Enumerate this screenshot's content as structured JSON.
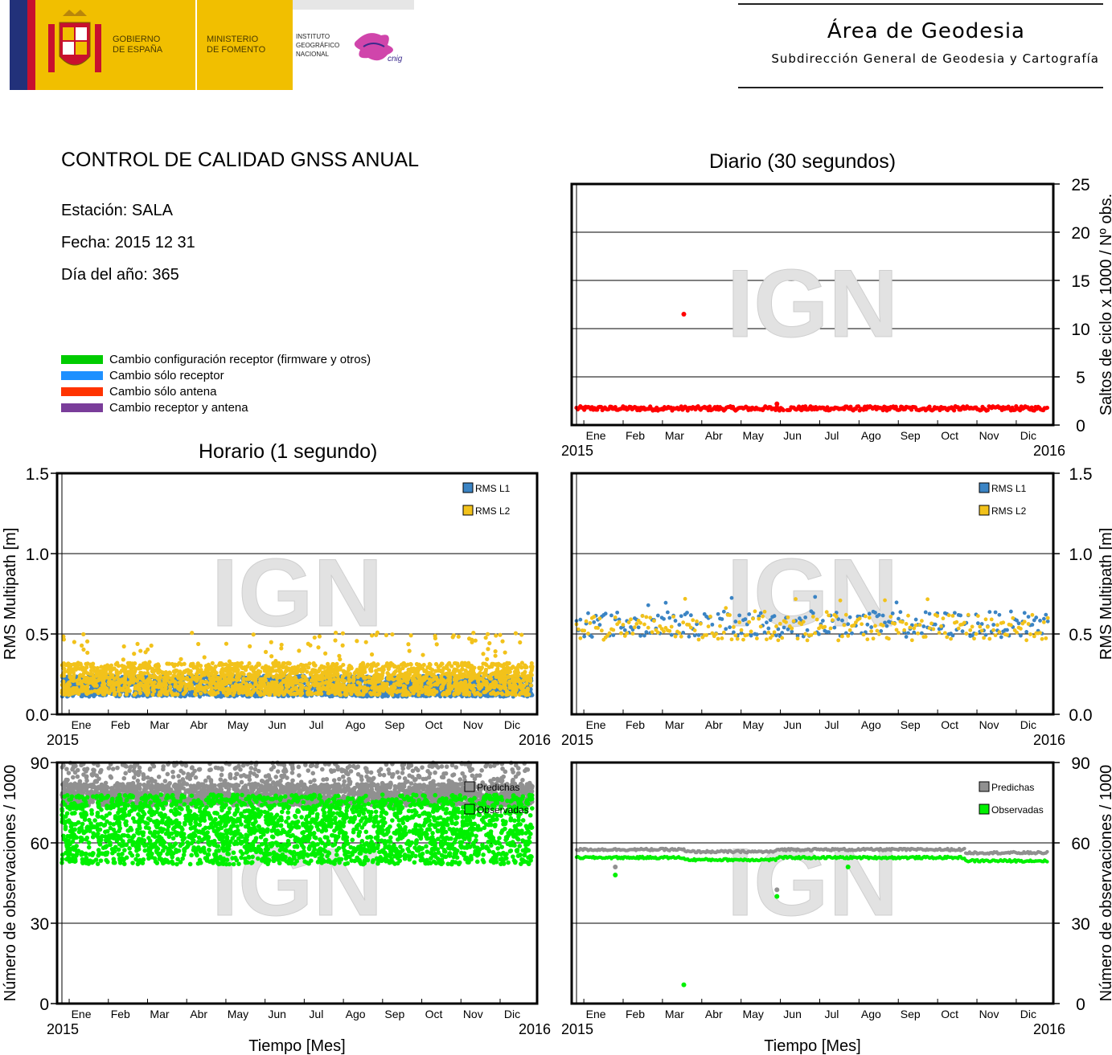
{
  "header": {
    "gobierno": [
      "GOBIERNO",
      "DE ESPAÑA"
    ],
    "ministerio": [
      "MINISTERIO",
      "DE FOMENTO"
    ],
    "instituto": [
      "INSTITUTO",
      "GEOGRÁFICO",
      "NACIONAL"
    ],
    "cnig": "cnig",
    "title": "Área de Geodesia",
    "subtitle": "Subdirección General de Geodesia y Cartografía",
    "colors": {
      "spain_red": "#c8102e",
      "spain_yellow": "#f1bf00",
      "eu_blue": "#22317a",
      "ign_magenta": "#c8249c"
    }
  },
  "info": {
    "title": "CONTROL DE CALIDAD GNSS ANUAL",
    "station": "Estación: SALA",
    "date": "Fecha: 2015 12 31",
    "doy": "Día del año: 365"
  },
  "legend": [
    {
      "label": "Cambio configuración receptor (firmware y otros)",
      "color": "#00cc00"
    },
    {
      "label": "Cambio sólo receptor",
      "color": "#1e90ff"
    },
    {
      "label": "Cambio sólo antena",
      "color": "#ff3300"
    },
    {
      "label": "Cambio receptor y antena",
      "color": "#7a3d9a"
    }
  ],
  "panel_titles": {
    "daily": "Diario (30 segundos)",
    "hourly": "Horario (1 segundo)"
  },
  "watermark": "IGN",
  "chart_data": [
    {
      "id": "cycle-slips-daily",
      "type": "scatter",
      "x_year_start": "2015",
      "x_year_end": "2016",
      "x_month_labels": [
        "Ene",
        "Feb",
        "Mar",
        "Abr",
        "May",
        "Jun",
        "Jul",
        "Ago",
        "Sep",
        "Oct",
        "Nov",
        "Dic"
      ],
      "ylabel": "Saltos de ciclo x 1000 / Nº obs.",
      "ylim": [
        0,
        25
      ],
      "yticks": [
        "0",
        "5",
        "10",
        "15",
        "20",
        "25"
      ],
      "y_axis_side": "right",
      "grid": true,
      "series": [
        {
          "color": "#ff0000",
          "points": [
            [
              83,
              11.5
            ],
            [
              155,
              2.2
            ],
            [
              160,
              1.8
            ],
            [
              0,
              1.6
            ],
            [
              30,
              1.4
            ],
            [
              60,
              1.6
            ],
            [
              90,
              1.5
            ],
            [
              120,
              1.5
            ],
            [
              150,
              1.5
            ],
            [
              180,
              1.6
            ],
            [
              210,
              1.8
            ],
            [
              240,
              1.7
            ],
            [
              270,
              1.7
            ],
            [
              300,
              1.5
            ],
            [
              330,
              1.6
            ],
            [
              364,
              1.6
            ]
          ]
        }
      ]
    },
    {
      "id": "multipath-hourly",
      "type": "scatter",
      "x_year_start": "2015",
      "x_year_end": "2016",
      "x_month_labels": [
        "Ene",
        "Feb",
        "Mar",
        "Abr",
        "May",
        "Jun",
        "Jul",
        "Ago",
        "Sep",
        "Oct",
        "Nov",
        "Dic"
      ],
      "ylabel": "RMS Multipath [m]",
      "ylim": [
        0,
        1.5
      ],
      "yticks": [
        "0.0",
        "0.5",
        "1.0",
        "1.5"
      ],
      "y_axis_side": "left",
      "grid": true,
      "series": [
        {
          "name": "RMS L1",
          "color": "#3b84c4",
          "band": [
            0.11,
            0.24
          ]
        },
        {
          "name": "RMS L2",
          "color": "#f2c21b",
          "band": [
            0.12,
            0.32
          ],
          "max": 0.51
        }
      ]
    },
    {
      "id": "multipath-daily",
      "type": "scatter",
      "x_year_start": "2015",
      "x_year_end": "2016",
      "x_month_labels": [
        "Ene",
        "Feb",
        "Mar",
        "Abr",
        "May",
        "Jun",
        "Jul",
        "Ago",
        "Sep",
        "Oct",
        "Nov",
        "Dic"
      ],
      "ylabel": "RMS Multipath [m]",
      "ylim": [
        0,
        1.5
      ],
      "yticks": [
        "0.0",
        "0.5",
        "1.0",
        "1.5"
      ],
      "y_axis_side": "right",
      "grid": true,
      "series": [
        {
          "name": "RMS L1",
          "color": "#3b84c4",
          "band": [
            0.48,
            0.64
          ]
        },
        {
          "name": "RMS L2",
          "color": "#f2c21b",
          "band": [
            0.46,
            0.62
          ]
        }
      ]
    },
    {
      "id": "observations-hourly",
      "type": "scatter",
      "x_year_start": "2015",
      "x_year_end": "2016",
      "x_month_labels": [
        "Ene",
        "Feb",
        "Mar",
        "Abr",
        "May",
        "Jun",
        "Jul",
        "Ago",
        "Sep",
        "Oct",
        "Nov",
        "Dic"
      ],
      "xlabel": "Tiempo [Mes]",
      "ylabel": "Número de observaciones / 1000",
      "ylim": [
        0,
        90
      ],
      "yticks": [
        "0",
        "30",
        "60",
        "90"
      ],
      "y_axis_side": "left",
      "grid": true,
      "series": [
        {
          "name": "Predichas",
          "color": "#909090",
          "band": [
            74,
            82
          ]
        },
        {
          "name": "Observadas",
          "color": "#00f000",
          "band": [
            52,
            78
          ]
        }
      ]
    },
    {
      "id": "observations-daily",
      "type": "scatter",
      "x_year_start": "2015",
      "x_year_end": "2016",
      "x_month_labels": [
        "Ene",
        "Feb",
        "Mar",
        "Abr",
        "May",
        "Jun",
        "Jul",
        "Ago",
        "Sep",
        "Oct",
        "Nov",
        "Dic"
      ],
      "xlabel": "Tiempo [Mes]",
      "ylabel": "Número de observaciones / 1000",
      "ylim": [
        0,
        90
      ],
      "yticks": [
        "0",
        "30",
        "60",
        "90"
      ],
      "y_axis_side": "right",
      "grid": true,
      "series": [
        {
          "name": "Predichas",
          "color": "#909090",
          "level": 57.5,
          "outliers": [
            [
              30,
              51
            ],
            [
              155,
              42.5
            ]
          ]
        },
        {
          "name": "Observadas",
          "color": "#00f000",
          "level": 54.5,
          "outliers": [
            [
              30,
              48
            ],
            [
              83,
              7
            ],
            [
              155,
              40
            ],
            [
              210,
              51
            ]
          ]
        }
      ]
    }
  ]
}
